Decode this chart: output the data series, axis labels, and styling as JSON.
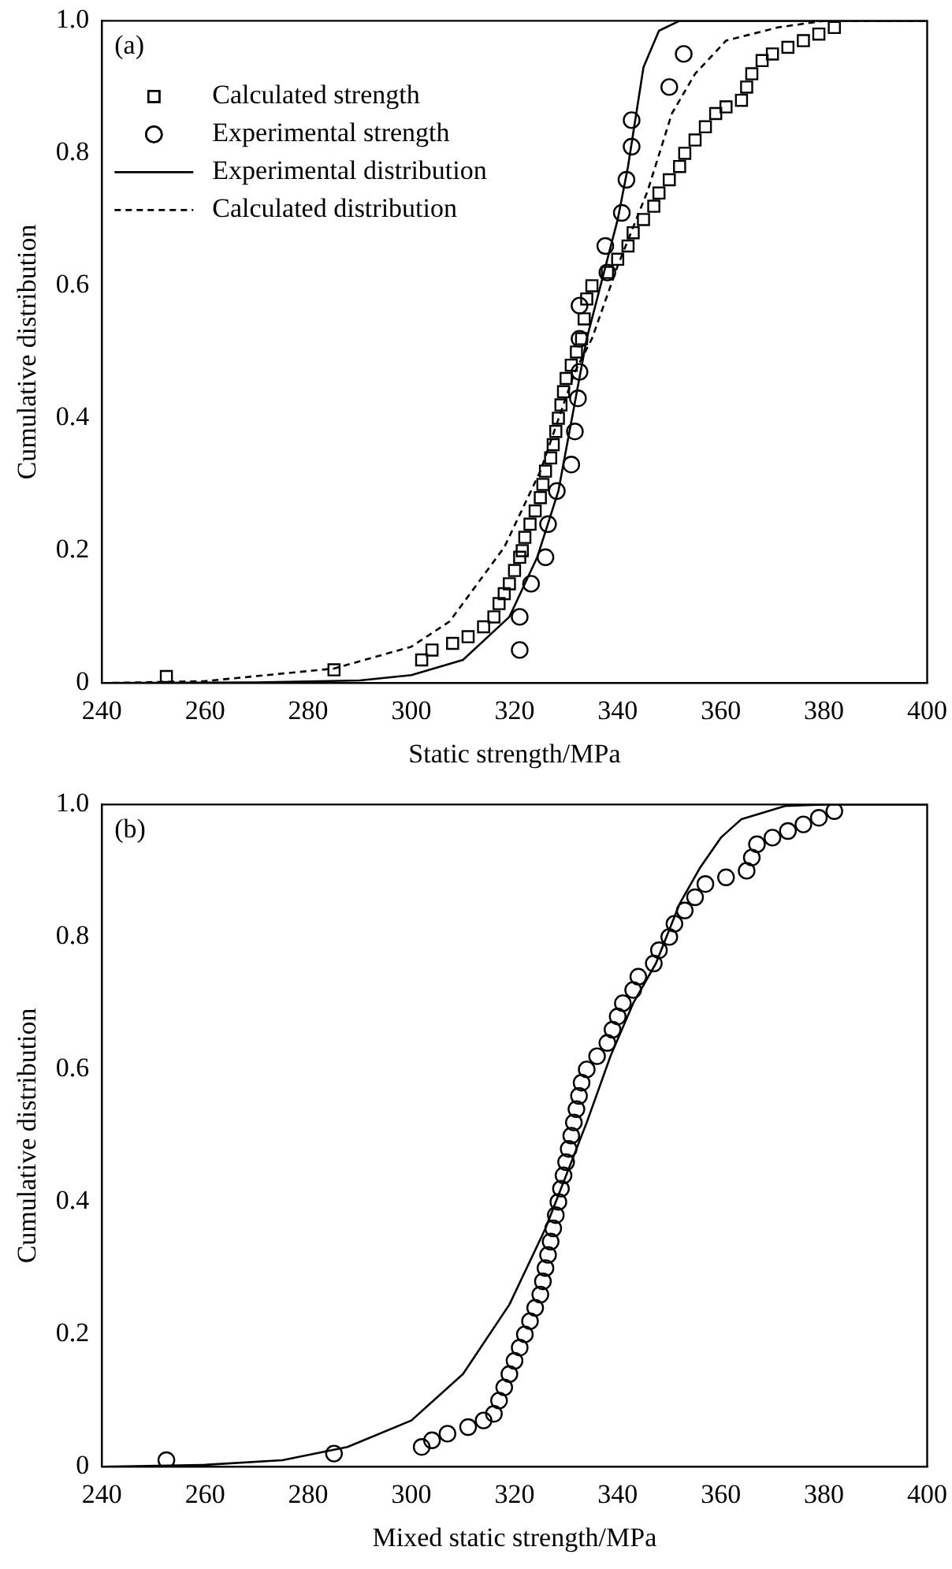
{
  "chart_data": [
    {
      "type": "scatter",
      "xlabel": "Static strength/MPa",
      "ylabel": "Cumulative distribution",
      "annotations": [
        "(a)"
      ],
      "legend": "top left",
      "xlim": [
        240,
        400
      ],
      "xticks": [
        240,
        260,
        280,
        300,
        320,
        340,
        360,
        380,
        400
      ],
      "ylim": [
        0,
        1
      ],
      "yticks": [
        0,
        0.2,
        0.4,
        0.6,
        0.8,
        {
          "value": 1,
          "label": "1.0"
        }
      ],
      "series": [
        {
          "name": "Calculated strength",
          "marker": "square",
          "color": "#000000",
          "x": [
            252.5,
            285,
            302,
            304,
            308,
            311,
            314,
            316,
            317,
            318,
            319,
            320,
            321,
            321.5,
            322,
            323,
            324,
            325,
            325.5,
            326,
            327,
            327.5,
            328,
            328.5,
            329,
            329.5,
            330,
            331,
            332,
            333,
            333.5,
            334,
            335,
            338,
            340,
            342,
            343,
            345,
            347,
            348,
            350,
            352,
            353,
            355,
            357,
            359,
            361,
            364,
            365,
            366,
            368,
            370,
            373,
            376,
            379,
            382
          ],
          "values": [
            0.01,
            0.02,
            0.035,
            0.05,
            0.06,
            0.07,
            0.085,
            0.1,
            0.12,
            0.135,
            0.15,
            0.17,
            0.19,
            0.2,
            0.22,
            0.24,
            0.26,
            0.28,
            0.3,
            0.32,
            0.34,
            0.36,
            0.38,
            0.4,
            0.42,
            0.44,
            0.46,
            0.48,
            0.5,
            0.52,
            0.55,
            0.58,
            0.6,
            0.62,
            0.64,
            0.66,
            0.68,
            0.7,
            0.72,
            0.74,
            0.76,
            0.78,
            0.8,
            0.82,
            0.84,
            0.86,
            0.87,
            0.88,
            0.9,
            0.92,
            0.94,
            0.95,
            0.96,
            0.97,
            0.98,
            0.99
          ]
        },
        {
          "name": "Experimental strength",
          "marker": "circle",
          "color": "#000000",
          "x": [
            321,
            321,
            323.2,
            326,
            326.5,
            328.2,
            331,
            331.7,
            332.3,
            332.6,
            332.6,
            332.6,
            338,
            337.6,
            340.8,
            341.7,
            342.7,
            342.7,
            350,
            352.8
          ],
          "values": [
            0.05,
            0.1,
            0.15,
            0.19,
            0.24,
            0.29,
            0.33,
            0.38,
            0.43,
            0.47,
            0.52,
            0.57,
            0.62,
            0.66,
            0.71,
            0.76,
            0.81,
            0.85,
            0.9,
            0.95
          ]
        },
        {
          "name": "Experimental distribution",
          "type": "line",
          "marker": "none",
          "line_style": "solid",
          "color": "#000000",
          "x": [
            240,
            270,
            290,
            300,
            310,
            319,
            324.4,
            328.5,
            334,
            340,
            342,
            345,
            348,
            352,
            360,
            400
          ],
          "values": [
            0,
            0.001,
            0.004,
            0.012,
            0.035,
            0.1,
            0.19,
            0.29,
            0.52,
            0.7,
            0.78,
            0.93,
            0.985,
            1,
            1,
            1
          ]
        },
        {
          "name": "Calculated distribution",
          "type": "line",
          "marker": "none",
          "line_style": "dashed",
          "color": "#000000",
          "x": [
            240,
            260,
            285,
            300,
            307.4,
            318,
            325,
            331.7,
            335,
            340,
            345.8,
            350.5,
            355,
            361,
            371,
            380,
            400
          ],
          "values": [
            0,
            0.003,
            0.022,
            0.055,
            0.093,
            0.205,
            0.32,
            0.47,
            0.52,
            0.63,
            0.743,
            0.86,
            0.92,
            0.97,
            0.99,
            1,
            1
          ]
        }
      ]
    },
    {
      "type": "scatter",
      "xlabel": "Mixed static strength/MPa",
      "ylabel": "Cumulative distribution",
      "annotations": [
        "(b)"
      ],
      "xlim": [
        240,
        400
      ],
      "xticks": [
        240,
        260,
        280,
        300,
        320,
        340,
        360,
        380,
        400
      ],
      "ylim": [
        0,
        1
      ],
      "yticks": [
        0,
        0.2,
        0.4,
        0.6,
        0.8,
        {
          "value": 1,
          "label": "1.0"
        }
      ],
      "series": [
        {
          "marker": "circle",
          "color": "#000000",
          "x": [
            252.5,
            285,
            302,
            304,
            307,
            311,
            314,
            316,
            317,
            318,
            319,
            320,
            321,
            322,
            323,
            324,
            325,
            325.5,
            326,
            326.5,
            327,
            327.5,
            328,
            328.5,
            329,
            329.5,
            330,
            330.5,
            331,
            331.5,
            332,
            332.5,
            333,
            334,
            336,
            338,
            339,
            340,
            341,
            343,
            344,
            347,
            348,
            350,
            351,
            353,
            355,
            357,
            361,
            365,
            366,
            367,
            370,
            373,
            376,
            379,
            382
          ],
          "values": [
            0.01,
            0.02,
            0.03,
            0.04,
            0.05,
            0.06,
            0.07,
            0.08,
            0.1,
            0.12,
            0.14,
            0.16,
            0.18,
            0.2,
            0.22,
            0.24,
            0.26,
            0.28,
            0.3,
            0.32,
            0.34,
            0.36,
            0.38,
            0.4,
            0.42,
            0.44,
            0.46,
            0.48,
            0.5,
            0.52,
            0.54,
            0.56,
            0.58,
            0.6,
            0.62,
            0.64,
            0.66,
            0.68,
            0.7,
            0.72,
            0.74,
            0.76,
            0.78,
            0.8,
            0.82,
            0.84,
            0.86,
            0.88,
            0.89,
            0.9,
            0.92,
            0.94,
            0.95,
            0.96,
            0.97,
            0.98,
            0.99
          ]
        },
        {
          "type": "line",
          "marker": "none",
          "line_style": "solid",
          "color": "#000000",
          "x": [
            240,
            260,
            275,
            287.6,
            300,
            310,
            319,
            326,
            334,
            338.6,
            343,
            347.4,
            352,
            356,
            360,
            364,
            372.6,
            380,
            400
          ],
          "values": [
            0,
            0.003,
            0.01,
            0.03,
            0.07,
            0.14,
            0.245,
            0.36,
            0.52,
            0.62,
            0.7,
            0.76,
            0.85,
            0.905,
            0.95,
            0.978,
            0.998,
            1,
            1
          ]
        }
      ]
    }
  ]
}
